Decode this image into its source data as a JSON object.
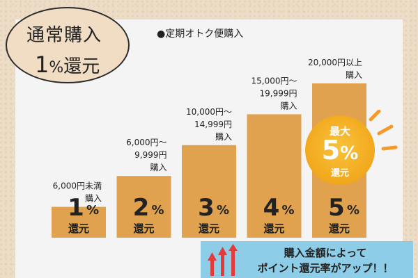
{
  "bubble": {
    "title": "通常購入",
    "rate_num": "1",
    "rate_pct": "%",
    "rate_suffix": "還元"
  },
  "chart_data": {
    "type": "bar",
    "title": "●定期オトク便購入",
    "categories": [
      "6,000円未満\n購入",
      "6,000円～\n9,999円\n購入",
      "10,000円～\n14,999円\n購入",
      "15,000円～\n19,999円\n購入",
      "20,000円以上\n購入"
    ],
    "values": [
      1,
      2,
      3,
      4,
      5
    ],
    "bar_labels": [
      {
        "num": "1",
        "pct": "%",
        "unit": "還元"
      },
      {
        "num": "2",
        "pct": "%",
        "unit": "還元"
      },
      {
        "num": "3",
        "pct": "%",
        "unit": "還元"
      },
      {
        "num": "4",
        "pct": "%",
        "unit": "還元"
      },
      {
        "num": "5",
        "pct": "%",
        "unit": "還元"
      }
    ],
    "ylim": [
      0,
      5
    ],
    "bar_color": "#e0a24f",
    "grid": false
  },
  "badge": {
    "top": "最大",
    "num": "5",
    "pct": "%",
    "bottom": "還元",
    "color": "#f2a81d"
  },
  "banner": {
    "line1": "購入金額によって",
    "line2": "ポイント還元率がアップ！！",
    "color": "#8ecde8",
    "arrow_color": "#e23b3b"
  }
}
